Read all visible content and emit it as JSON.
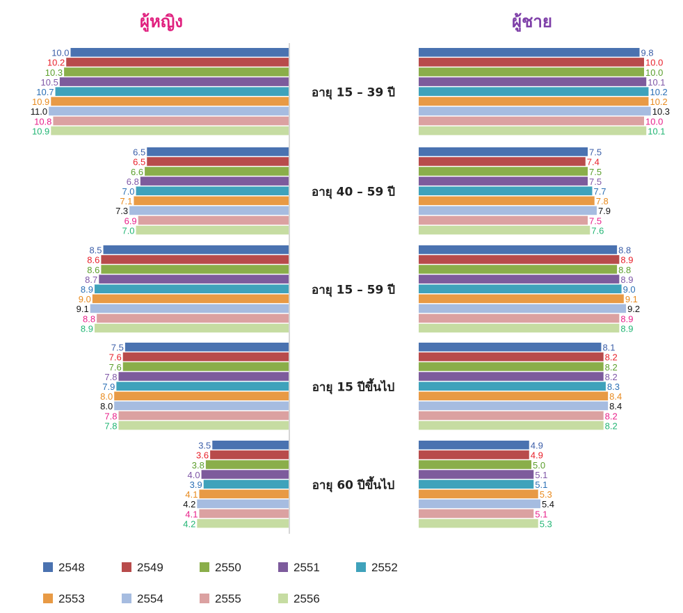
{
  "chart_data": {
    "type": "bar",
    "orientation": "horizontal",
    "layout": "back-to-back",
    "panels": [
      {
        "name": "ผู้หญิง",
        "color": "#e0217f"
      },
      {
        "name": "ผู้ชาย",
        "color": "#7e3fa8"
      }
    ],
    "categories": [
      "อายุ 15 – 39 ปี",
      "อายุ 40 – 59 ปี",
      "อายุ 15 – 59 ปี",
      "อายุ 15 ปีขึ้นไป",
      "อายุ 60 ปีขึ้นไป"
    ],
    "series": [
      {
        "name": "2548",
        "color": "#4a72b0",
        "label_color": "#3b5ea8"
      },
      {
        "name": "2549",
        "color": "#b84b4b",
        "label_color": "#e8202a"
      },
      {
        "name": "2550",
        "color": "#8aae4a",
        "label_color": "#5a9e2a"
      },
      {
        "name": "2551",
        "color": "#7d5b9c",
        "label_color": "#7e56a6"
      },
      {
        "name": "2552",
        "color": "#3fa2bb",
        "label_color": "#2a6fb5"
      },
      {
        "name": "2553",
        "color": "#e89a45",
        "label_color": "#e88a1e"
      },
      {
        "name": "2554",
        "color": "#a6bce0",
        "label_color": "#111111"
      },
      {
        "name": "2555",
        "color": "#dba1a1",
        "label_color": "#e8208a"
      },
      {
        "name": "2556",
        "color": "#c6dca2",
        "label_color": "#21b573"
      }
    ],
    "values": {
      "female": [
        [
          10.0,
          10.2,
          10.3,
          10.5,
          10.7,
          10.9,
          11.0,
          10.8,
          10.9
        ],
        [
          6.5,
          6.5,
          6.6,
          6.8,
          7.0,
          7.1,
          7.3,
          6.9,
          7.0
        ],
        [
          8.5,
          8.6,
          8.6,
          8.7,
          8.9,
          9.0,
          9.1,
          8.8,
          8.9
        ],
        [
          7.5,
          7.6,
          7.6,
          7.8,
          7.9,
          8.0,
          8.0,
          7.8,
          7.8
        ],
        [
          3.5,
          3.6,
          3.8,
          4.0,
          3.9,
          4.1,
          4.2,
          4.1,
          4.2
        ]
      ],
      "male": [
        [
          9.8,
          10.0,
          10.0,
          10.1,
          10.2,
          10.2,
          10.3,
          10.0,
          10.1
        ],
        [
          7.5,
          7.4,
          7.5,
          7.5,
          7.7,
          7.8,
          7.9,
          7.5,
          7.6
        ],
        [
          8.8,
          8.9,
          8.8,
          8.9,
          9.0,
          9.1,
          9.2,
          8.9,
          8.9
        ],
        [
          8.1,
          8.2,
          8.2,
          8.2,
          8.3,
          8.4,
          8.4,
          8.2,
          8.2
        ],
        [
          4.9,
          4.9,
          5.0,
          5.1,
          5.1,
          5.3,
          5.4,
          5.1,
          5.3
        ]
      ]
    },
    "grid": false,
    "legend_position": "bottom-left"
  }
}
